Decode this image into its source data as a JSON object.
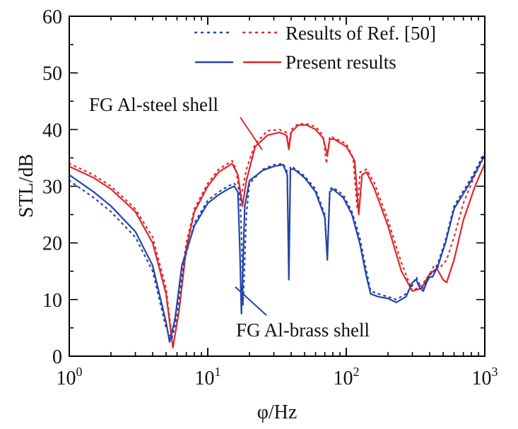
{
  "chart_data": {
    "type": "line",
    "xlabel": "φ/Hz",
    "ylabel": "STL/dB",
    "xscale": "log",
    "xlim": [
      1,
      1000
    ],
    "ylim": [
      0,
      60
    ],
    "xticks": [
      {
        "value": 1,
        "base": "10",
        "exp": "0"
      },
      {
        "value": 10,
        "base": "10",
        "exp": "1"
      },
      {
        "value": 100,
        "base": "10",
        "exp": "2"
      },
      {
        "value": 1000,
        "base": "10",
        "exp": "3"
      }
    ],
    "yticks": [
      0,
      10,
      20,
      30,
      40,
      50,
      60
    ],
    "grid": false,
    "legend": {
      "position": "top-right",
      "entries": [
        {
          "label": "Results of Ref. [50]",
          "style": "dotted"
        },
        {
          "label": "Present results",
          "style": "solid"
        }
      ]
    },
    "colors": {
      "steel": "#e0262a",
      "brass": "#2444a8"
    },
    "annotations": [
      {
        "text": "FG Al-steel shell",
        "series": "steel",
        "arrow_to": [
          27,
          36.5
        ]
      },
      {
        "text": "FG Al-brass shell",
        "series": "brass",
        "arrow_to": [
          17,
          12
        ]
      }
    ],
    "series": [
      {
        "group": "steel",
        "style": "solid",
        "x": [
          1,
          1.5,
          2,
          3,
          4,
          5,
          5.6,
          6.2,
          7,
          8,
          10,
          12,
          15,
          16.5,
          17.8,
          19,
          22,
          27,
          33,
          37,
          38.5,
          40,
          45,
          52,
          60,
          68,
          73,
          76,
          82,
          100,
          115,
          123,
          130,
          140,
          160,
          200,
          250,
          300,
          350,
          400,
          450,
          500,
          530,
          600,
          700,
          850,
          1000
        ],
        "y": [
          33.5,
          31.5,
          29.5,
          25.5,
          20,
          11,
          1.5,
          8,
          19,
          25.5,
          30,
          32.5,
          34,
          32,
          26.5,
          31,
          37,
          39,
          39.5,
          39,
          36.5,
          39.5,
          40.8,
          40.8,
          40,
          38.5,
          35.5,
          38.3,
          38.3,
          37,
          34.5,
          25,
          32,
          32.5,
          29.5,
          23,
          15,
          11.5,
          12,
          14.5,
          15.5,
          13.5,
          13,
          17,
          24,
          30,
          34
        ]
      },
      {
        "group": "steel",
        "style": "dotted",
        "x": [
          1,
          1.5,
          2,
          3,
          4,
          5,
          5.5,
          6,
          7,
          8,
          10,
          12,
          15,
          16,
          17.2,
          19,
          22,
          27,
          33,
          37,
          38.5,
          40,
          45,
          52,
          60,
          68,
          72,
          76,
          82,
          100,
          112,
          120,
          126,
          140,
          160,
          200,
          250,
          300,
          350,
          400,
          430,
          470,
          530,
          600,
          700,
          850,
          1000
        ],
        "y": [
          34,
          32,
          30,
          26,
          21,
          12,
          3.5,
          9,
          20,
          26,
          30.5,
          33,
          34.5,
          33,
          27.5,
          33,
          37.5,
          39.8,
          40,
          39.5,
          37,
          40,
          41,
          41,
          40.5,
          39,
          34,
          38.8,
          38.5,
          37.5,
          35,
          26,
          32.5,
          33,
          30.5,
          24,
          16.5,
          11.5,
          12.5,
          14.5,
          16,
          15.5,
          17,
          21,
          27,
          32,
          35.5
        ]
      },
      {
        "group": "brass",
        "style": "solid",
        "x": [
          1,
          1.5,
          2,
          3,
          4,
          5,
          5.3,
          5.8,
          6.5,
          8,
          10,
          12,
          14,
          15.5,
          16.5,
          17,
          17.5,
          18.5,
          20,
          25,
          30,
          35,
          37.5,
          38.5,
          39.5,
          42,
          50,
          60,
          70,
          73,
          76,
          80,
          95,
          110,
          125,
          140,
          150,
          170,
          200,
          230,
          270,
          300,
          320,
          340,
          360,
          380,
          400,
          420,
          460,
          520,
          600,
          800,
          1000
        ],
        "y": [
          32,
          29,
          26.5,
          22,
          16,
          6,
          2.5,
          6.5,
          16,
          23,
          27,
          28.5,
          29.5,
          30,
          29,
          20,
          7.5,
          26.5,
          31,
          32.8,
          33.5,
          33.8,
          32,
          13.5,
          33,
          33,
          31.5,
          29,
          24.5,
          17,
          29,
          29.5,
          28,
          25,
          20,
          14,
          11,
          10.5,
          10.2,
          9.5,
          10.5,
          13,
          13.5,
          12,
          11.5,
          13,
          14,
          14,
          16,
          20,
          26,
          31,
          35.5
        ]
      },
      {
        "group": "brass",
        "style": "dotted",
        "x": [
          1,
          1.5,
          2,
          3,
          4,
          5,
          5.5,
          6,
          6.8,
          8,
          10,
          12,
          14,
          15.5,
          17,
          17.5,
          18,
          19,
          20,
          25,
          30,
          35,
          37.5,
          38.5,
          39.5,
          42,
          50,
          60,
          70,
          73,
          76,
          80,
          95,
          110,
          125,
          140,
          150,
          170,
          200,
          230,
          270,
          300,
          320,
          340,
          360,
          380,
          400,
          420,
          460,
          520,
          600,
          800,
          1000
        ],
        "y": [
          31,
          28,
          25.5,
          21,
          15,
          5,
          3,
          7,
          17,
          23.5,
          27.5,
          29,
          30,
          30.5,
          29.5,
          22,
          9,
          25,
          30.5,
          33,
          33.8,
          34,
          32.5,
          14.5,
          33.5,
          33.2,
          31.8,
          29.5,
          25,
          18,
          29.5,
          29.8,
          28.5,
          25.5,
          21,
          15,
          11.5,
          11,
          10.5,
          10,
          11,
          12.5,
          14,
          12.5,
          12,
          13.5,
          14.5,
          14.5,
          16.5,
          20.5,
          26.5,
          31.5,
          36
        ]
      }
    ]
  }
}
